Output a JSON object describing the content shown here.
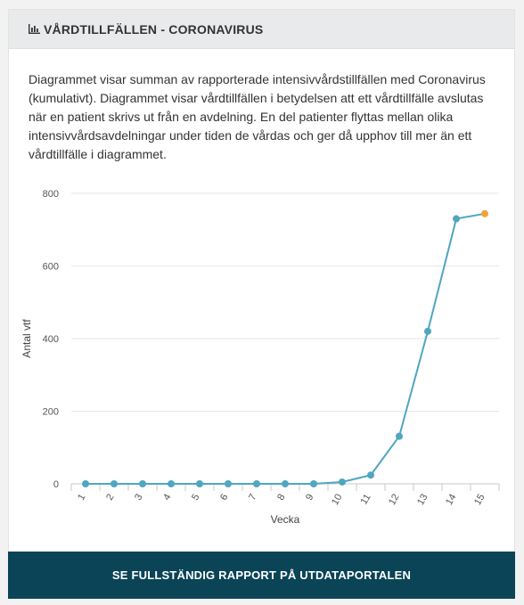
{
  "header": {
    "title": "VÅRDTILLFÄLLEN - CORONAVIRUS",
    "icon": "bar-chart-icon"
  },
  "description": "Diagrammet visar summan av rapporterade intensivvårdstillfällen med Coronavirus (kumulativt). Diagrammet visar vårdtillfällen i betydelsen att ett vårdtillfälle avslutas när en patient skrivs ut från en avdelning. En del patienter flyttas mellan olika intensivvårdsavdelningar under tiden de vårdas och ger då upphov till mer än ett vårdtillfälle i diagrammet.",
  "chart_data": {
    "type": "line",
    "xlabel": "Vecka",
    "ylabel": "Antal vtf",
    "categories": [
      "1",
      "2",
      "3",
      "4",
      "5",
      "6",
      "7",
      "8",
      "9",
      "10",
      "11",
      "12",
      "13",
      "14",
      "15"
    ],
    "values": [
      0,
      0,
      0,
      0,
      0,
      0,
      0,
      0,
      0,
      5,
      24,
      131,
      420,
      730,
      744
    ],
    "ylim": [
      0,
      800
    ],
    "yticks": [
      0,
      200,
      400,
      600,
      800
    ],
    "grid": true,
    "colors": {
      "line": "#4fa6bf",
      "highlight": "#f2a33a",
      "grid": "#e6e6e6"
    }
  },
  "footer": {
    "button_label": "SE FULLSTÄNDIG RAPPORT PÅ UTDATAPORTALEN"
  }
}
